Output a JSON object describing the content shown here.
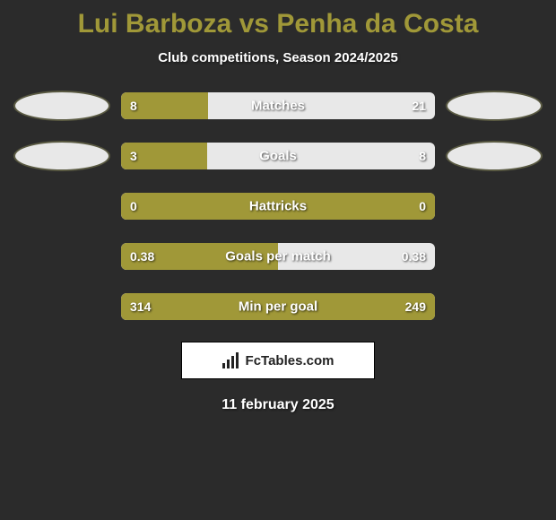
{
  "title": "Lui Barboza vs Penha da Costa",
  "subtitle": "Club competitions, Season 2024/2025",
  "bar_fill_color": "#a09838",
  "bar_bg_color": "#e8e8e8",
  "text_color": "#ffffff",
  "rows": [
    {
      "left": "8",
      "center": "Matches",
      "right": "21",
      "fill_pct": 27.6,
      "show_left_ellipse": true,
      "show_right_ellipse": true
    },
    {
      "left": "3",
      "center": "Goals",
      "right": "8",
      "fill_pct": 27.3,
      "show_left_ellipse": true,
      "show_right_ellipse": true
    },
    {
      "left": "0",
      "center": "Hattricks",
      "right": "0",
      "fill_pct": 100,
      "show_left_ellipse": false,
      "show_right_ellipse": false
    },
    {
      "left": "0.38",
      "center": "Goals per match",
      "right": "0.38",
      "fill_pct": 50,
      "show_left_ellipse": false,
      "show_right_ellipse": false
    },
    {
      "left": "314",
      "center": "Min per goal",
      "right": "249",
      "fill_pct": 100,
      "show_left_ellipse": false,
      "show_right_ellipse": false
    }
  ],
  "brand": "FcTables.com",
  "date": "11 february 2025"
}
